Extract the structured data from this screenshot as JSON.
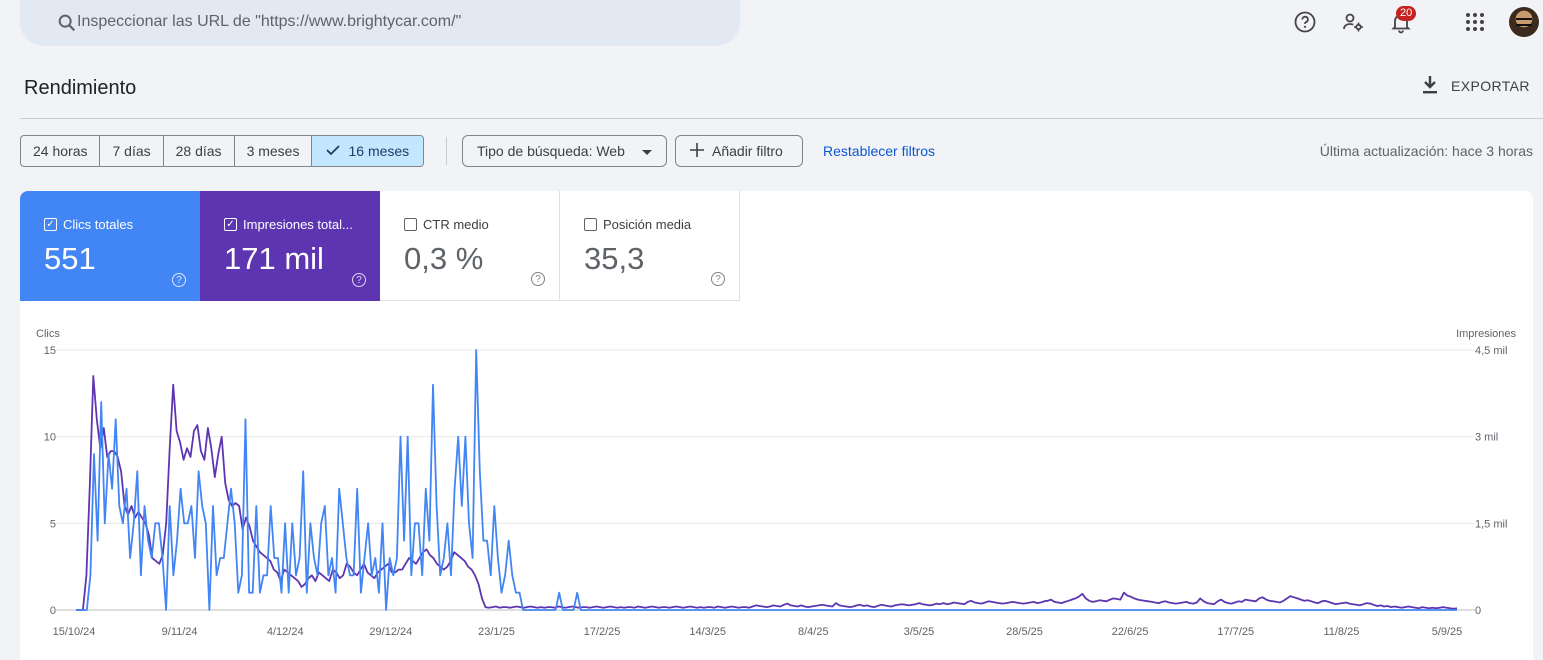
{
  "search": {
    "placeholder": "Inspeccionar las URL de \"https://www.brightycar.com/\""
  },
  "header": {
    "notifications_count": "20"
  },
  "page": {
    "title": "Rendimiento",
    "export_label": "EXPORTAR"
  },
  "filters": {
    "ranges": [
      "24 horas",
      "7 días",
      "28 días",
      "3 meses",
      "16 meses"
    ],
    "selected_range": "16 meses",
    "search_type": "Tipo de búsqueda: Web",
    "add_filter": "Añadir filtro",
    "reset": "Restablecer filtros",
    "last_update": "Última actualización: hace 3 horas"
  },
  "metrics": [
    {
      "label": "Clics totales",
      "value": "551",
      "checked": true,
      "color": "#4285f4"
    },
    {
      "label": "Impresiones total...",
      "value": "171 mil",
      "checked": true,
      "color": "#5e35b1"
    },
    {
      "label": "CTR medio",
      "value": "0,3 %",
      "checked": false
    },
    {
      "label": "Posición media",
      "value": "35,3",
      "checked": false
    }
  ],
  "chart_data": {
    "type": "line",
    "left_axis_label": "Clics",
    "right_axis_label": "Impresiones",
    "left_ticks": [
      "0",
      "5",
      "10",
      "15"
    ],
    "left_range": [
      0,
      15
    ],
    "right_ticks": [
      "0",
      "1,5 mil",
      "3 mil",
      "4,5 mil"
    ],
    "right_range": [
      0,
      4500
    ],
    "x_labels": [
      "15/10/24",
      "9/11/24",
      "4/12/24",
      "29/12/24",
      "23/1/25",
      "17/2/25",
      "14/3/25",
      "8/4/25",
      "3/5/25",
      "28/5/25",
      "22/6/25",
      "17/7/25",
      "11/8/25",
      "5/9/25"
    ],
    "grid": true,
    "series": [
      {
        "name": "Clics",
        "axis": "left",
        "color": "#4285f4",
        "values": [
          0,
          0,
          0,
          0,
          2,
          9,
          4,
          12,
          5,
          9,
          7,
          11,
          6,
          5,
          7,
          3,
          5,
          8,
          2,
          6,
          4,
          3,
          5,
          5,
          3,
          0,
          6,
          2,
          4,
          7,
          5,
          5,
          6,
          3,
          8,
          6,
          5,
          0,
          6,
          2,
          3,
          3,
          5,
          7,
          5,
          1,
          2,
          11,
          1,
          1,
          6,
          1,
          2,
          2,
          6,
          3,
          3,
          1,
          5,
          1,
          5,
          2,
          3,
          8,
          1,
          5,
          3,
          2,
          5,
          6,
          2,
          3,
          1,
          7,
          5,
          3,
          2,
          2,
          7,
          1,
          3,
          5,
          2,
          3,
          1,
          5,
          0,
          3,
          2,
          3,
          10,
          4,
          10,
          2,
          5,
          5,
          2,
          7,
          4,
          13,
          6,
          2,
          3,
          5,
          2,
          7,
          10,
          6,
          10,
          5,
          3,
          15,
          8,
          4,
          4,
          2,
          6,
          3,
          1,
          2,
          4,
          2,
          1,
          1,
          0,
          0,
          0,
          0,
          0,
          0,
          0,
          0,
          0,
          0,
          1,
          0,
          0,
          0,
          0,
          1,
          0,
          0,
          0,
          0,
          0,
          0,
          0,
          0,
          0,
          0,
          0,
          0,
          0,
          0,
          0,
          0,
          0,
          0,
          0,
          0,
          0,
          0,
          0,
          0,
          0,
          0,
          0,
          0,
          0,
          0,
          0,
          0,
          0,
          0,
          0,
          0,
          0,
          0,
          0,
          0,
          0,
          0,
          0,
          0,
          0,
          0,
          0,
          0,
          0,
          0,
          0,
          0,
          0,
          0,
          0,
          0,
          0,
          0,
          0,
          0,
          0,
          0,
          0,
          0,
          0,
          0,
          0,
          0,
          0,
          0,
          0,
          0,
          0,
          0,
          0,
          0,
          0,
          0,
          0,
          0,
          0,
          0,
          0,
          0,
          0,
          0,
          0,
          0,
          0,
          0,
          0,
          0,
          0,
          0,
          0,
          0,
          0,
          0,
          0,
          0,
          0,
          0,
          0,
          0,
          0,
          0,
          0,
          0,
          0,
          0,
          0,
          0,
          0,
          0,
          0,
          0,
          0,
          0,
          0,
          0,
          0,
          0,
          0,
          0,
          0,
          0,
          0,
          0,
          0,
          0,
          0,
          0,
          0,
          0,
          0,
          0,
          0,
          0,
          0,
          0,
          0,
          0,
          0,
          0,
          0,
          0,
          0,
          0,
          0,
          0,
          0,
          0,
          0,
          0,
          0,
          0,
          0,
          0,
          0,
          0,
          0,
          0,
          0,
          0,
          0,
          0,
          0,
          0,
          0,
          0,
          0,
          0,
          0,
          0,
          0,
          0,
          0,
          0,
          0,
          0,
          0,
          0,
          0,
          0,
          0,
          0,
          0,
          0,
          0,
          0,
          0,
          0,
          0,
          0,
          0,
          0,
          0,
          0,
          0,
          0,
          0,
          0,
          0,
          0,
          0,
          0,
          0,
          0,
          0,
          0,
          0,
          0,
          0,
          0,
          0,
          0,
          0,
          0,
          0,
          0,
          0,
          0,
          0,
          0,
          0,
          0,
          0,
          0,
          0,
          0,
          0,
          0,
          0,
          0,
          0,
          0,
          0,
          0,
          0,
          0,
          0,
          0,
          0,
          0
        ]
      },
      {
        "name": "Impresiones",
        "axis": "right",
        "color": "#5e35b1",
        "values": [
          0,
          0,
          0,
          600,
          2200,
          4050,
          3300,
          2800,
          3150,
          2650,
          2750,
          2750,
          2650,
          2400,
          1800,
          1650,
          1800,
          1600,
          1700,
          1600,
          1500,
          1300,
          900,
          850,
          800,
          950,
          1500,
          2800,
          3900,
          3100,
          2900,
          2600,
          2800,
          2650,
          3100,
          3200,
          2750,
          2600,
          3150,
          2800,
          2300,
          2700,
          3000,
          2200,
          1900,
          1800,
          1850,
          1800,
          1400,
          1600,
          1450,
          1200,
          1100,
          1000,
          950,
          900,
          850,
          700,
          650,
          500,
          700,
          650,
          600,
          550,
          500,
          400,
          450,
          550,
          600,
          500,
          650,
          600,
          550,
          500,
          700,
          650,
          550,
          600,
          800,
          750,
          650,
          600,
          700,
          800,
          650,
          600,
          550,
          650,
          700,
          750,
          800,
          650,
          650,
          700,
          700,
          800,
          900,
          850,
          800,
          900,
          1000,
          1050,
          950,
          900,
          800,
          750,
          700,
          750,
          850,
          1000,
          950,
          900,
          850,
          750,
          700,
          600,
          450,
          200,
          50,
          40,
          50,
          60,
          40,
          50,
          50,
          40,
          50,
          60,
          50,
          40,
          50,
          60,
          50,
          40,
          50,
          40,
          50,
          50,
          40,
          60,
          50,
          40,
          50,
          60,
          50,
          40,
          50,
          50,
          40,
          50,
          60,
          50,
          40,
          50,
          60,
          50,
          40,
          50,
          40,
          50,
          50,
          40,
          60,
          50,
          40,
          50,
          60,
          50,
          40,
          50,
          50,
          40,
          50,
          60,
          50,
          40,
          50,
          60,
          50,
          40,
          50,
          40,
          50,
          50,
          40,
          60,
          50,
          40,
          50,
          60,
          50,
          40,
          50,
          50,
          40,
          60,
          80,
          70,
          60,
          50,
          60,
          80,
          70,
          60,
          90,
          110,
          80,
          70,
          60,
          80,
          60,
          50,
          60,
          70,
          80,
          90,
          80,
          70,
          60,
          120,
          80,
          70,
          60,
          50,
          60,
          80,
          90,
          70,
          80,
          60,
          50,
          70,
          90,
          80,
          70,
          60,
          80,
          90,
          100,
          90,
          80,
          90,
          100,
          120,
          100,
          90,
          80,
          90,
          110,
          100,
          120,
          100,
          110,
          130,
          120,
          110,
          100,
          140,
          160,
          130,
          120,
          110,
          130,
          150,
          140,
          130,
          120,
          110,
          120,
          130,
          140,
          130,
          120,
          110,
          120,
          130,
          140,
          120,
          130,
          150,
          160,
          180,
          140,
          130,
          120,
          140,
          160,
          180,
          200,
          230,
          280,
          200,
          160,
          140,
          150,
          170,
          160,
          150,
          180,
          200,
          190,
          180,
          300,
          250,
          230,
          200,
          180,
          170,
          160,
          150,
          140,
          130,
          120,
          140,
          150,
          130,
          120,
          110,
          120,
          130,
          140,
          120,
          110,
          130,
          200,
          150,
          120,
          110,
          100,
          150,
          180,
          140,
          120,
          110,
          130,
          150,
          140,
          180,
          170,
          160,
          150,
          200,
          220,
          180,
          160,
          150,
          140,
          130,
          160,
          200,
          240,
          220,
          200,
          180,
          160,
          170,
          150,
          130,
          120,
          150,
          160,
          140,
          120,
          100,
          110,
          120,
          130,
          110,
          100,
          90,
          80,
          100,
          120,
          110,
          90,
          70,
          80,
          60,
          70,
          50,
          60,
          50,
          40,
          50,
          60,
          50,
          40,
          30,
          50,
          40,
          30,
          40,
          30,
          40,
          50,
          40,
          30,
          20,
          30
        ]
      }
    ]
  }
}
